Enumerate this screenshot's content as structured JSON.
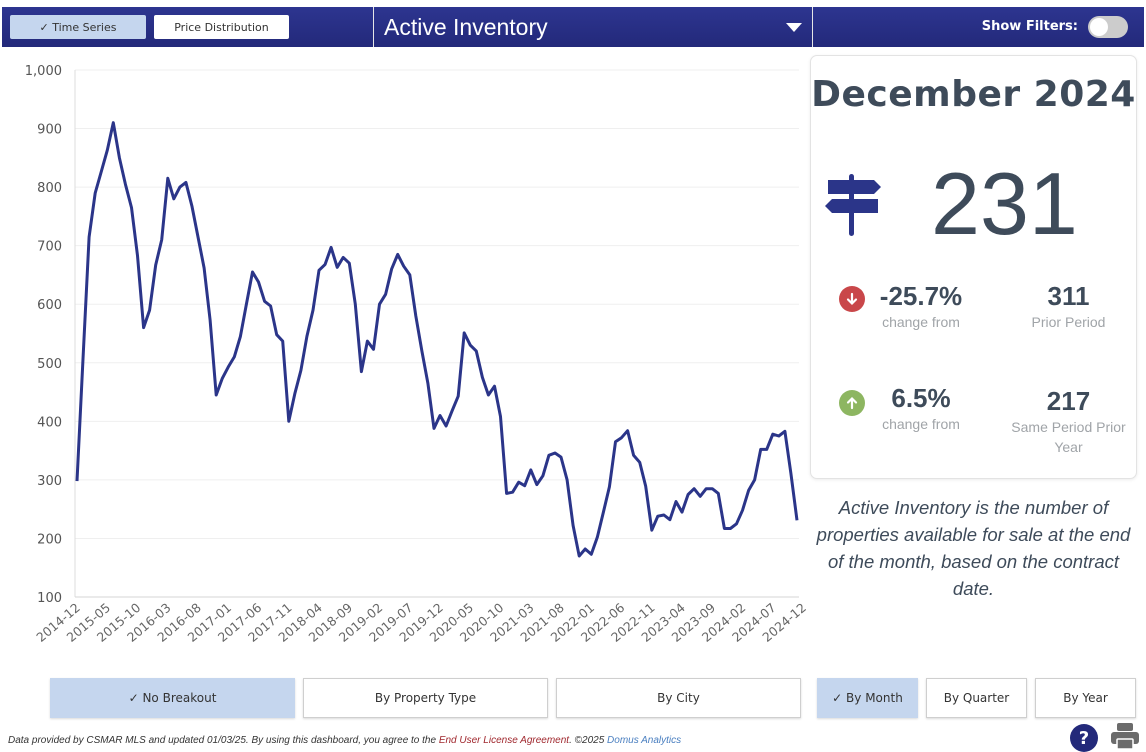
{
  "header": {
    "tabs": [
      {
        "label": "✓ Time Series",
        "active": true
      },
      {
        "label": "Price Distribution",
        "active": false
      }
    ],
    "metric_select": "Active Inventory",
    "show_filters_label": "Show Filters:",
    "show_filters_on": false
  },
  "summary": {
    "period": "December 2024",
    "icon": "signpost-icon",
    "value": "231",
    "mom": {
      "change": "-25.7%",
      "direction": "down",
      "change_label": "change from",
      "compare_value": "311",
      "compare_label": "Prior Period"
    },
    "yoy": {
      "change": "6.5%",
      "direction": "up",
      "change_label": "change from",
      "compare_value": "217",
      "compare_label": "Same Period Prior Year"
    }
  },
  "description": "Active Inventory is the number of properties available for sale at the end of the month, based on the contract date.",
  "breakout_buttons": [
    {
      "label": "✓ No Breakout",
      "active": true
    },
    {
      "label": "By Property Type",
      "active": false
    },
    {
      "label": "By City",
      "active": false
    }
  ],
  "interval_buttons": [
    {
      "label": "✓ By Month",
      "active": true
    },
    {
      "label": "By Quarter",
      "active": false
    },
    {
      "label": "By Year",
      "active": false
    }
  ],
  "footer": {
    "text": "Data provided by CSMAR MLS and updated 01/03/25.  By using this dashboard, you agree to the ",
    "eula_link": "End User License Agreement",
    "copyright": ".  ©2025 ",
    "brand_link": "Domus Analytics",
    "help_icon": "?",
    "print_icon": "printer-icon"
  },
  "colors": {
    "brand": "#23297a",
    "line": "#2b3589",
    "active_button": "#c5d6ee",
    "down": "#c9474a",
    "up": "#8db661",
    "text": "#3e4b5a"
  },
  "chart_data": {
    "type": "line",
    "title": "Active Inventory",
    "xlabel": "",
    "ylabel": "",
    "ylim": [
      100,
      1000
    ],
    "yticks": [
      "100",
      "200",
      "300",
      "400",
      "500",
      "600",
      "700",
      "800",
      "900",
      "1,000"
    ],
    "ytick_values": [
      100,
      200,
      300,
      400,
      500,
      600,
      700,
      800,
      900,
      1000
    ],
    "xtick_labels": [
      "2014-12",
      "2015-05",
      "2015-10",
      "2016-03",
      "2016-08",
      "2017-01",
      "2017-06",
      "2017-11",
      "2018-04",
      "2018-09",
      "2019-02",
      "2019-07",
      "2019-12",
      "2020-05",
      "2020-10",
      "2021-03",
      "2021-08",
      "2022-01",
      "2022-06",
      "2022-11",
      "2023-04",
      "2023-09",
      "2024-02",
      "2024-07",
      "2024-12"
    ],
    "grid": true,
    "legend": "none",
    "x_start": "2014-12",
    "x_step": "1 month",
    "series": [
      {
        "name": "Active Inventory",
        "values": [
          298,
          510,
          715,
          790,
          826,
          863,
          910,
          850,
          805,
          765,
          683,
          560,
          590,
          667,
          710,
          815,
          780,
          800,
          808,
          767,
          715,
          662,
          573,
          445,
          473,
          493,
          510,
          545,
          600,
          655,
          638,
          605,
          597,
          548,
          537,
          400,
          447,
          487,
          545,
          590,
          658,
          668,
          697,
          663,
          680,
          670,
          600,
          485,
          537,
          523,
          600,
          617,
          660,
          685,
          665,
          650,
          580,
          520,
          465,
          388,
          410,
          392,
          418,
          443,
          551,
          530,
          520,
          475,
          445,
          460,
          408,
          277,
          279,
          296,
          290,
          317,
          292,
          307,
          342,
          346,
          339,
          300,
          222,
          170,
          182,
          173,
          202,
          245,
          288,
          365,
          372,
          384,
          342,
          330,
          289,
          214,
          238,
          240,
          232,
          263,
          245,
          275,
          285,
          272,
          285,
          285,
          277,
          217,
          217,
          225,
          248,
          282,
          300,
          352,
          352,
          378,
          375,
          383,
          311,
          231
        ]
      }
    ]
  }
}
